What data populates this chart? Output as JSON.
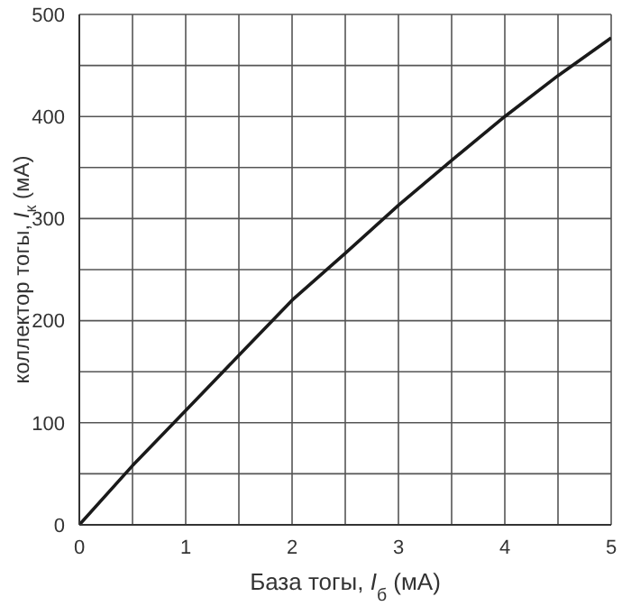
{
  "chart_data": {
    "type": "line",
    "xlabel": "База тогы, I$_{б}$ (мА)",
    "ylabel": "коллектор тогы, I$_{к}$ (мА)",
    "x": [
      0,
      0.5,
      1,
      1.5,
      2,
      2.5,
      3,
      3.5,
      4,
      4.5,
      5
    ],
    "series": [
      {
        "color": "#1a1a1a",
        "values": [
          0,
          58,
          112,
          166,
          220,
          266,
          313,
          357,
          400,
          440,
          477
        ]
      }
    ],
    "xlim": [
      0,
      5
    ],
    "ylim": [
      0,
      500
    ],
    "xticks": [
      0,
      {
        "value": 0.5,
        "label": null
      },
      1,
      {
        "value": 1.5,
        "label": null
      },
      2,
      {
        "value": 2.5,
        "label": null
      },
      3,
      {
        "value": 3.5,
        "label": null
      },
      4,
      {
        "value": 4.5,
        "label": null
      },
      5
    ],
    "yticks": [
      0,
      {
        "value": 50,
        "label": null
      },
      100,
      {
        "value": 150,
        "label": null
      },
      200,
      {
        "value": 250,
        "label": null
      },
      300,
      {
        "value": 350,
        "label": null
      },
      400,
      {
        "value": 450,
        "label": null
      },
      500
    ],
    "grid": true,
    "legend": false,
    "marker": "none",
    "line_style": "solid"
  }
}
